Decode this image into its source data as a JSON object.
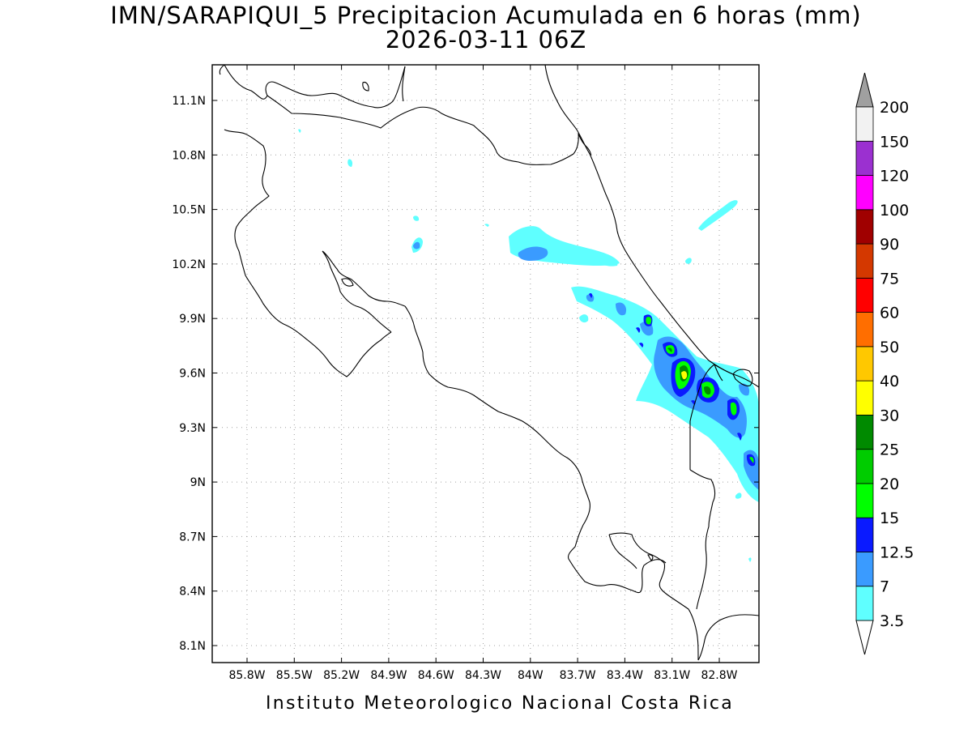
{
  "title": {
    "line1": "IMN/SARAPIQUI_5 Precipitacion Acumulada en 6 horas (mm)",
    "line2": "2026-03-11 06Z"
  },
  "footer": "Instituto Meteorologico Nacional Costa Rica",
  "map": {
    "lon_range": [
      -86.1,
      -82.6
    ],
    "lat_range": [
      8.0,
      11.3
    ],
    "grid": "dotted",
    "x_ticks": [
      "85.8W",
      "85.5W",
      "85.2W",
      "84.9W",
      "84.6W",
      "84.3W",
      "84W",
      "83.7W",
      "83.4W",
      "83.1W",
      "82.8W"
    ],
    "y_ticks": [
      "11.1N",
      "10.8N",
      "10.5N",
      "10.2N",
      "9.9N",
      "9.6N",
      "9.3N",
      "9N",
      "8.7N",
      "8.4N",
      "8.1N"
    ]
  },
  "colorbar": {
    "levels": [
      {
        "label": "3.5",
        "color": "#ffffff"
      },
      {
        "label": "7",
        "color": "#5fffff"
      },
      {
        "label": "12.5",
        "color": "#3a9bff"
      },
      {
        "label": "15",
        "color": "#0a1aff"
      },
      {
        "label": "20",
        "color": "#00ff00"
      },
      {
        "label": "25",
        "color": "#00cc00"
      },
      {
        "label": "30",
        "color": "#008a00"
      },
      {
        "label": "40",
        "color": "#ffff00"
      },
      {
        "label": "50",
        "color": "#ffc800"
      },
      {
        "label": "60",
        "color": "#ff6e00"
      },
      {
        "label": "75",
        "color": "#ff0000"
      },
      {
        "label": "90",
        "color": "#d43800"
      },
      {
        "label": "100",
        "color": "#a00000"
      },
      {
        "label": "120",
        "color": "#ff00ff"
      },
      {
        "label": "150",
        "color": "#9b30d0"
      },
      {
        "label": "200",
        "color": "#f2f2f2"
      }
    ],
    "top_extension_color": "#a0a0a0",
    "bottom_extension_color": "#ffffff"
  }
}
